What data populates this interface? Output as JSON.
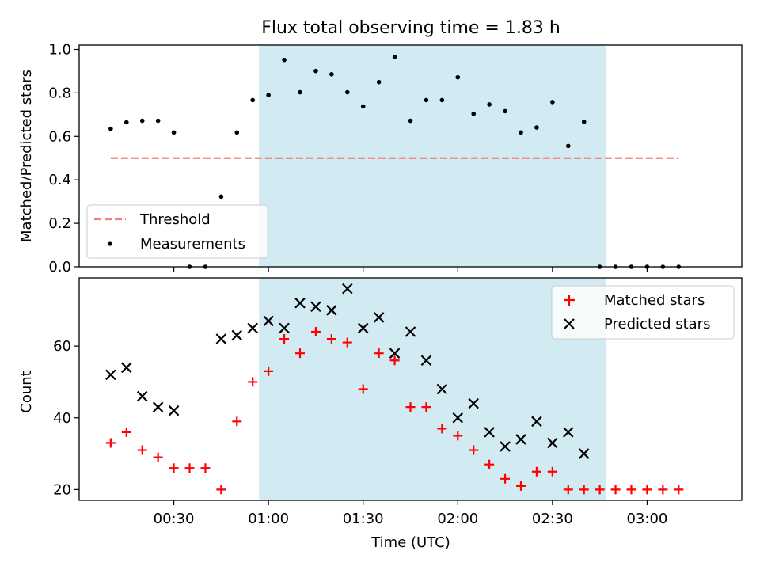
{
  "chart_data": {
    "type": "scatter",
    "title": "Flux total observing time = 1.83 h",
    "xlabel": "Time (UTC)",
    "x_unit": "minutes after 00:00 UTC",
    "xlim": [
      0,
      210
    ],
    "xticks": [
      {
        "value": 30,
        "label": "00:30"
      },
      {
        "value": 60,
        "label": "01:00"
      },
      {
        "value": 90,
        "label": "01:30"
      },
      {
        "value": 120,
        "label": "02:00"
      },
      {
        "value": 150,
        "label": "02:30"
      },
      {
        "value": 180,
        "label": "03:00"
      }
    ],
    "shaded_interval": [
      57,
      167
    ],
    "shaded_color": "#add8e6",
    "panels": [
      {
        "name": "ratio",
        "ylabel": "Matched/Predicted stars",
        "ylim": [
          0,
          1.02
        ],
        "yticks": [
          {
            "value": 0.0,
            "label": "0.0"
          },
          {
            "value": 0.2,
            "label": "0.2"
          },
          {
            "value": 0.4,
            "label": "0.4"
          },
          {
            "value": 0.6,
            "label": "0.6"
          },
          {
            "value": 0.8,
            "label": "0.8"
          },
          {
            "value": 1.0,
            "label": "1.0"
          }
        ],
        "threshold": {
          "name": "Threshold",
          "value": 0.5,
          "x_range": [
            10,
            190
          ],
          "color": "#f08080"
        },
        "series": [
          {
            "name": "Measurements",
            "marker": "dot",
            "color": "#000000",
            "x": [
              10,
              15,
              20,
              25,
              30,
              35,
              40,
              45,
              50,
              55,
              60,
              65,
              70,
              75,
              80,
              85,
              90,
              95,
              100,
              105,
              110,
              115,
              120,
              125,
              130,
              135,
              140,
              145,
              150,
              155,
              160,
              165,
              170,
              175,
              180,
              185,
              190
            ],
            "y": [
              0.635,
              0.665,
              0.672,
              0.672,
              0.618,
              0.0,
              0.0,
              0.323,
              0.618,
              0.767,
              0.79,
              0.952,
              0.803,
              0.901,
              0.886,
              0.803,
              0.738,
              0.85,
              0.966,
              0.672,
              0.767,
              0.767,
              0.872,
              0.704,
              0.747,
              0.716,
              0.618,
              0.641,
              0.758,
              0.556,
              0.667,
              0.0,
              0.0,
              0.0,
              0.0,
              0.0,
              0.0
            ]
          }
        ],
        "legend": {
          "position": "lower left",
          "entries": [
            "Threshold",
            "Measurements"
          ]
        }
      },
      {
        "name": "count",
        "ylabel": "Count",
        "ylim": [
          17,
          79
        ],
        "yticks": [
          {
            "value": 20,
            "label": "20"
          },
          {
            "value": 40,
            "label": "40"
          },
          {
            "value": 60,
            "label": "60"
          }
        ],
        "series": [
          {
            "name": "Matched stars",
            "marker": "plus",
            "color": "#ff0000",
            "x": [
              10,
              15,
              20,
              25,
              30,
              35,
              40,
              45,
              50,
              55,
              60,
              65,
              70,
              75,
              80,
              85,
              90,
              95,
              100,
              105,
              110,
              115,
              120,
              125,
              130,
              135,
              140,
              145,
              150,
              155,
              160,
              165,
              170,
              175,
              180,
              185,
              190
            ],
            "y": [
              33,
              36,
              31,
              29,
              26,
              26,
              26,
              20,
              39,
              50,
              53,
              62,
              58,
              64,
              62,
              61,
              48,
              58,
              56,
              43,
              43,
              37,
              35,
              31,
              27,
              23,
              21,
              25,
              25,
              20,
              20,
              20,
              20,
              20,
              20,
              20,
              20
            ]
          },
          {
            "name": "Predicted stars",
            "marker": "x",
            "color": "#000000",
            "x": [
              10,
              15,
              20,
              25,
              30,
              45,
              50,
              55,
              60,
              65,
              70,
              75,
              80,
              85,
              90,
              95,
              100,
              105,
              110,
              115,
              120,
              125,
              130,
              135,
              140,
              145,
              150,
              155,
              160
            ],
            "y": [
              52,
              54,
              46,
              43,
              42,
              62,
              63,
              65,
              67,
              65,
              72,
              71,
              70,
              76,
              65,
              68,
              58,
              64,
              56,
              48,
              40,
              44,
              36,
              32,
              34,
              39,
              33,
              36,
              30
            ]
          }
        ],
        "legend": {
          "position": "upper right",
          "entries": [
            "Matched stars",
            "Predicted stars"
          ]
        }
      }
    ]
  }
}
